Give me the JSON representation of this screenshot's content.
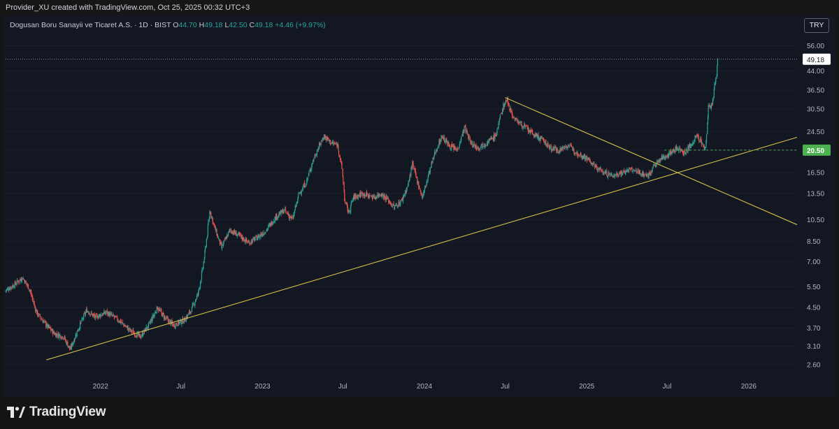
{
  "header": {
    "credit": "Provider_XU created with TradingView.com, Oct 25, 2025 00:32 UTC+3"
  },
  "legend": {
    "symbol": "Dogusan Boru Sanayii ve Ticaret A.S. · 1D · BIST",
    "open_label": "O",
    "open": "44.70",
    "high_label": "H",
    "high": "49.18",
    "low_label": "L",
    "low": "42.50",
    "close_label": "C",
    "close": "49.18",
    "change": "+4.46 (+9.97%)"
  },
  "currency_button": "TRY",
  "footer": {
    "brand": "TradingView"
  },
  "colors": {
    "background": "#131722",
    "up": "#26a69a",
    "down": "#ef5350",
    "trendline": "#d4c14a",
    "level_line": "#4caf50",
    "price_marker_bg": "#ffffff",
    "level_marker_bg": "#4caf50"
  },
  "chart_data": {
    "type": "candlestick",
    "scale": "log",
    "ylim": [
      2.3,
      63
    ],
    "y_ticks": [
      "56.00",
      "44.00",
      "36.50",
      "30.50",
      "24.50",
      "20.50",
      "16.50",
      "13.50",
      "10.50",
      "8.50",
      "7.00",
      "5.50",
      "4.50",
      "3.70",
      "3.10",
      "2.60"
    ],
    "x_ticks": [
      "2022",
      "Jul",
      "2023",
      "Jul",
      "2024",
      "Jul",
      "2025",
      "Jul",
      "2026"
    ],
    "x_tick_dates": [
      "2022-01-01",
      "2022-07-01",
      "2023-01-01",
      "2023-07-01",
      "2024-01-01",
      "2024-07-01",
      "2025-01-01",
      "2025-07-01",
      "2026-01-01"
    ],
    "x_range": [
      "2021-06-01",
      "2026-04-20"
    ],
    "last_price": "49.18",
    "level_label": "20.50",
    "level_value": 20.5,
    "series": [
      {
        "date": "2021-06-01",
        "value": 5.3
      },
      {
        "date": "2021-06-20",
        "value": 5.6
      },
      {
        "date": "2021-07-10",
        "value": 6.0
      },
      {
        "date": "2021-07-25",
        "value": 5.4
      },
      {
        "date": "2021-08-10",
        "value": 4.3
      },
      {
        "date": "2021-09-01",
        "value": 3.8
      },
      {
        "date": "2021-09-20",
        "value": 3.5
      },
      {
        "date": "2021-10-10",
        "value": 3.4
      },
      {
        "date": "2021-10-25",
        "value": 3.0
      },
      {
        "date": "2021-11-10",
        "value": 3.6
      },
      {
        "date": "2021-12-01",
        "value": 4.4
      },
      {
        "date": "2021-12-20",
        "value": 4.1
      },
      {
        "date": "2022-01-15",
        "value": 4.3
      },
      {
        "date": "2022-02-10",
        "value": 4.0
      },
      {
        "date": "2022-03-10",
        "value": 3.6
      },
      {
        "date": "2022-04-01",
        "value": 3.4
      },
      {
        "date": "2022-04-20",
        "value": 3.8
      },
      {
        "date": "2022-05-10",
        "value": 4.5
      },
      {
        "date": "2022-05-25",
        "value": 4.1
      },
      {
        "date": "2022-06-15",
        "value": 3.8
      },
      {
        "date": "2022-07-10",
        "value": 4.0
      },
      {
        "date": "2022-07-25",
        "value": 4.4
      },
      {
        "date": "2022-08-10",
        "value": 5.2
      },
      {
        "date": "2022-08-20",
        "value": 6.6
      },
      {
        "date": "2022-08-28",
        "value": 8.5
      },
      {
        "date": "2022-09-05",
        "value": 11.5
      },
      {
        "date": "2022-09-15",
        "value": 9.8
      },
      {
        "date": "2022-10-01",
        "value": 8.0
      },
      {
        "date": "2022-10-20",
        "value": 9.5
      },
      {
        "date": "2022-11-10",
        "value": 9.0
      },
      {
        "date": "2022-12-01",
        "value": 8.4
      },
      {
        "date": "2022-12-20",
        "value": 8.8
      },
      {
        "date": "2023-01-10",
        "value": 9.5
      },
      {
        "date": "2023-02-01",
        "value": 10.8
      },
      {
        "date": "2023-02-20",
        "value": 11.5
      },
      {
        "date": "2023-03-10",
        "value": 10.5
      },
      {
        "date": "2023-03-25",
        "value": 13.5
      },
      {
        "date": "2023-04-10",
        "value": 15.0
      },
      {
        "date": "2023-04-25",
        "value": 18.5
      },
      {
        "date": "2023-05-10",
        "value": 21.5
      },
      {
        "date": "2023-05-20",
        "value": 23.5
      },
      {
        "date": "2023-06-05",
        "value": 22.0
      },
      {
        "date": "2023-06-20",
        "value": 21.5
      },
      {
        "date": "2023-06-30",
        "value": 17.0
      },
      {
        "date": "2023-07-06",
        "value": 12.5
      },
      {
        "date": "2023-07-15",
        "value": 11.2
      },
      {
        "date": "2023-07-25",
        "value": 13.0
      },
      {
        "date": "2023-08-15",
        "value": 13.5
      },
      {
        "date": "2023-09-10",
        "value": 13.0
      },
      {
        "date": "2023-09-25",
        "value": 13.5
      },
      {
        "date": "2023-10-10",
        "value": 12.8
      },
      {
        "date": "2023-10-25",
        "value": 11.8
      },
      {
        "date": "2023-11-10",
        "value": 12.5
      },
      {
        "date": "2023-11-25",
        "value": 14.5
      },
      {
        "date": "2023-12-05",
        "value": 18.0
      },
      {
        "date": "2023-12-15",
        "value": 15.5
      },
      {
        "date": "2023-12-28",
        "value": 13.0
      },
      {
        "date": "2024-01-10",
        "value": 16.0
      },
      {
        "date": "2024-01-25",
        "value": 20.0
      },
      {
        "date": "2024-02-10",
        "value": 23.5
      },
      {
        "date": "2024-02-25",
        "value": 21.5
      },
      {
        "date": "2024-03-15",
        "value": 20.5
      },
      {
        "date": "2024-04-01",
        "value": 25.5
      },
      {
        "date": "2024-04-15",
        "value": 22.0
      },
      {
        "date": "2024-05-01",
        "value": 21.0
      },
      {
        "date": "2024-05-20",
        "value": 22.0
      },
      {
        "date": "2024-06-10",
        "value": 23.5
      },
      {
        "date": "2024-06-25",
        "value": 30.5
      },
      {
        "date": "2024-07-05",
        "value": 33.5
      },
      {
        "date": "2024-07-20",
        "value": 28.0
      },
      {
        "date": "2024-08-10",
        "value": 26.0
      },
      {
        "date": "2024-09-01",
        "value": 24.0
      },
      {
        "date": "2024-09-25",
        "value": 22.5
      },
      {
        "date": "2024-10-10",
        "value": 21.0
      },
      {
        "date": "2024-11-01",
        "value": 20.5
      },
      {
        "date": "2024-11-20",
        "value": 21.5
      },
      {
        "date": "2024-12-10",
        "value": 20.0
      },
      {
        "date": "2025-01-01",
        "value": 19.0
      },
      {
        "date": "2025-01-20",
        "value": 17.5
      },
      {
        "date": "2025-02-10",
        "value": 16.5
      },
      {
        "date": "2025-03-01",
        "value": 16.0
      },
      {
        "date": "2025-03-20",
        "value": 16.5
      },
      {
        "date": "2025-04-10",
        "value": 17.0
      },
      {
        "date": "2025-05-01",
        "value": 16.5
      },
      {
        "date": "2025-05-20",
        "value": 16.0
      },
      {
        "date": "2025-06-01",
        "value": 17.5
      },
      {
        "date": "2025-06-20",
        "value": 19.0
      },
      {
        "date": "2025-07-10",
        "value": 20.0
      },
      {
        "date": "2025-07-25",
        "value": 21.0
      },
      {
        "date": "2025-08-10",
        "value": 20.0
      },
      {
        "date": "2025-08-25",
        "value": 21.5
      },
      {
        "date": "2025-09-05",
        "value": 23.5
      },
      {
        "date": "2025-09-15",
        "value": 22.5
      },
      {
        "date": "2025-09-22",
        "value": 21.0
      },
      {
        "date": "2025-09-25",
        "value": 20.5
      },
      {
        "date": "2025-09-28",
        "value": 23.0
      },
      {
        "date": "2025-10-01",
        "value": 28.0
      },
      {
        "date": "2025-10-03",
        "value": 32.0
      },
      {
        "date": "2025-10-07",
        "value": 30.5
      },
      {
        "date": "2025-10-13",
        "value": 33.0
      },
      {
        "date": "2025-10-16",
        "value": 37.0
      },
      {
        "date": "2025-10-20",
        "value": 41.0
      },
      {
        "date": "2025-10-22",
        "value": 44.7
      },
      {
        "date": "2025-10-24",
        "value": 49.18
      }
    ],
    "trendlines": [
      {
        "from": {
          "date": "2021-09-01",
          "value": 2.72
        },
        "to": {
          "date": "2026-04-20",
          "value": 23.2
        }
      },
      {
        "from": {
          "date": "2024-07-01",
          "value": 34.0
        },
        "to": {
          "date": "2026-04-20",
          "value": 10.0
        }
      }
    ]
  }
}
